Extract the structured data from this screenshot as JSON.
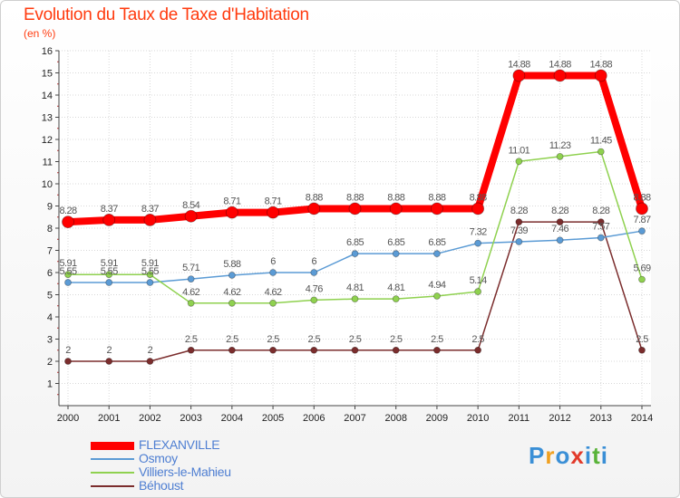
{
  "header": {
    "title": "Evolution du Taux de Taxe d'Habitation",
    "subtitle": "(en %)"
  },
  "logo": {
    "text": "Proxiti",
    "colors": [
      "#3a8fd6",
      "#f0a020",
      "#3a8fd6",
      "#e23a2a",
      "#3a8fd6",
      "#59b339",
      "#3a8fd6"
    ]
  },
  "chart_data": {
    "type": "line",
    "title": "Evolution du Taux de Taxe d'Habitation",
    "subtitle": "(en %)",
    "xlabel": "",
    "ylabel": "(en %)",
    "ylim": [
      1,
      16
    ],
    "y_ticks": [
      "1",
      "2",
      "3",
      "4",
      "5",
      "6",
      "7",
      "8",
      "9",
      "10",
      "11",
      "12",
      "13",
      "14",
      "15",
      "16"
    ],
    "x": [
      "2000",
      "2001",
      "2002",
      "2003",
      "2004",
      "2005",
      "2006",
      "2007",
      "2008",
      "2009",
      "2010",
      "2011",
      "2012",
      "2013",
      "2014"
    ],
    "grid": true,
    "legend_position": "bottom-left",
    "series": [
      {
        "name": "FLEXANVILLE",
        "color": "#ff0000",
        "values": [
          8.28,
          8.37,
          8.37,
          8.54,
          8.71,
          8.71,
          8.88,
          8.88,
          8.88,
          8.88,
          8.88,
          14.88,
          14.88,
          14.88,
          8.88
        ],
        "labels": [
          "8.28",
          "8.37",
          "8.37",
          "8.54",
          "8.71",
          "8.71",
          "8.88",
          "8.88",
          "8.88",
          "8.88",
          "8.88",
          "14.88",
          "14.88",
          "14.88",
          "8.88"
        ]
      },
      {
        "name": "Osmoy",
        "color": "#5b9bd5",
        "values": [
          5.55,
          5.55,
          5.55,
          5.71,
          5.88,
          6,
          6,
          6.85,
          6.85,
          6.85,
          7.32,
          7.39,
          7.46,
          7.57,
          7.87
        ],
        "labels": [
          "5.55",
          "5.55",
          "5.55",
          "5.71",
          "5.88",
          "6",
          "6",
          "6.85",
          "6.85",
          "6.85",
          "7.32",
          "7.39",
          "7.46",
          "7.57",
          "7.87"
        ]
      },
      {
        "name": "Villiers-le-Mahieu",
        "color": "#8fd14f",
        "values": [
          5.91,
          5.91,
          5.91,
          4.62,
          4.62,
          4.62,
          4.76,
          4.81,
          4.81,
          4.94,
          5.14,
          11.01,
          11.23,
          11.45,
          5.69
        ],
        "labels": [
          "5.91",
          "5.91",
          "5.91",
          "4.62",
          "4.62",
          "4.62",
          "4.76",
          "4.81",
          "4.81",
          "4.94",
          "5.14",
          "11.01",
          "11.23",
          "11.45",
          "5.69"
        ]
      },
      {
        "name": "Béhoust",
        "color": "#7b2d2d",
        "values": [
          2,
          2,
          2,
          2.5,
          2.5,
          2.5,
          2.5,
          2.5,
          2.5,
          2.5,
          2.5,
          8.28,
          8.28,
          8.28,
          2.5
        ],
        "labels": [
          "2",
          "2",
          "2",
          "2.5",
          "2.5",
          "2.5",
          "2.5",
          "2.5",
          "2.5",
          "2.5",
          "2.5",
          "8.28",
          "8.28",
          "8.28",
          "2.5"
        ]
      }
    ]
  }
}
